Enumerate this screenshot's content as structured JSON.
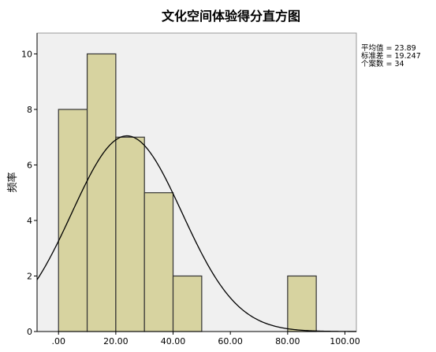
{
  "chart_data": {
    "type": "bar",
    "title": "文化空间体验得分直方图",
    "ylabel": "频率",
    "xlabel": "",
    "bins": [
      {
        "from": 0,
        "to": 10,
        "count": 8
      },
      {
        "from": 10,
        "to": 20,
        "count": 10
      },
      {
        "from": 20,
        "to": 30,
        "count": 7
      },
      {
        "from": 30,
        "to": 40,
        "count": 5
      },
      {
        "from": 40,
        "to": 50,
        "count": 2
      },
      {
        "from": 80,
        "to": 90,
        "count": 2
      }
    ],
    "xlim": [
      -7.5,
      104
    ],
    "ylim": [
      0,
      10.75
    ],
    "x_ticks": [
      0,
      20,
      40,
      60,
      80,
      100
    ],
    "x_tick_labels": [
      ".00",
      "20.00",
      "40.00",
      "60.00",
      "80.00",
      "100.00"
    ],
    "y_ticks": [
      0,
      2,
      4,
      6,
      8,
      10
    ],
    "y_tick_labels": [
      "0",
      "2",
      "4",
      "6",
      "8",
      "10"
    ],
    "normal_curve": {
      "mean": 23.89,
      "std": 19.247,
      "n": 34,
      "bin_width": 10
    },
    "stats": [
      "平均值 = 23.89",
      "标准差 = 19.247",
      "个案数 = 34"
    ],
    "grid": false,
    "legend": "top-right",
    "colors": {
      "bar_fill": "#d7d3a0",
      "bar_stroke": "#333333",
      "plot_bg": "#f0f0f0",
      "curve": "#000000"
    }
  }
}
